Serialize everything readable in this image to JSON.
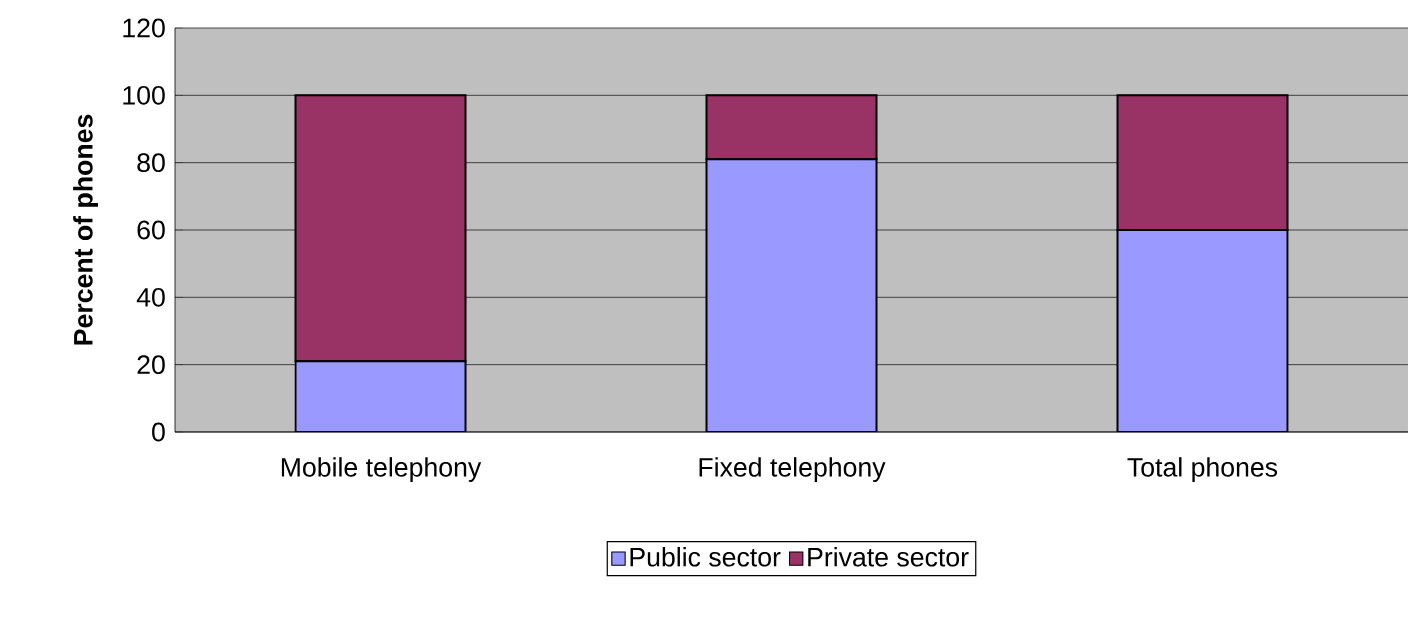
{
  "chart_data": {
    "type": "bar",
    "stacked": true,
    "ylabel": "Percent of phones",
    "categories": [
      "Mobile telephony",
      "Fixed telephony",
      "Total phones"
    ],
    "series": [
      {
        "name": "Public sector",
        "color": "#9999ff",
        "values": [
          21,
          81,
          60
        ]
      },
      {
        "name": "Private sector",
        "color": "#993366",
        "values": [
          79,
          19,
          40
        ]
      }
    ],
    "ylim": [
      0,
      120
    ],
    "yticks": [
      0,
      20,
      40,
      60,
      80,
      100,
      120
    ],
    "grid": "y",
    "legend": "bottom"
  }
}
